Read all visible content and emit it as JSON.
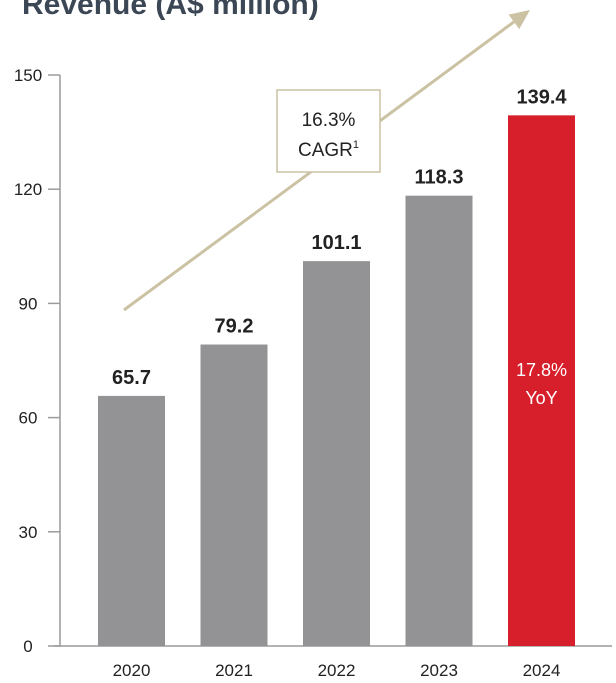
{
  "chart_data": {
    "type": "bar",
    "title": "Revenue (A$ million)",
    "xlabel": "",
    "ylabel": "",
    "categories": [
      "2020",
      "2021",
      "2022",
      "2023",
      "2024"
    ],
    "values": [
      65.7,
      79.2,
      101.1,
      118.3,
      139.4
    ],
    "data_labels": [
      "65.7",
      "79.2",
      "101.1",
      "118.3",
      "139.4"
    ],
    "ylim": [
      0,
      150
    ],
    "yticks": [
      0,
      30,
      60,
      90,
      120,
      150
    ],
    "ytick_labels": [
      "0",
      "30",
      "60",
      "90",
      "120",
      "150"
    ],
    "grid": false,
    "legend": "none",
    "highlight_index": 4,
    "highlight_annotation": {
      "line1": "17.8%",
      "line2": "YoY"
    },
    "cagr_annotation": {
      "line1": "16.3%",
      "line2": "CAGR",
      "superscript": "1"
    }
  },
  "colors": {
    "bar": "#939396",
    "highlight_bar": "#d71f2b",
    "title": "#3c4755",
    "axis": "#9a9a9a",
    "text": "#222222",
    "arrow": "#cbc2a3",
    "box_border": "#cbc2a3",
    "inbar_text": "#ffffff"
  }
}
